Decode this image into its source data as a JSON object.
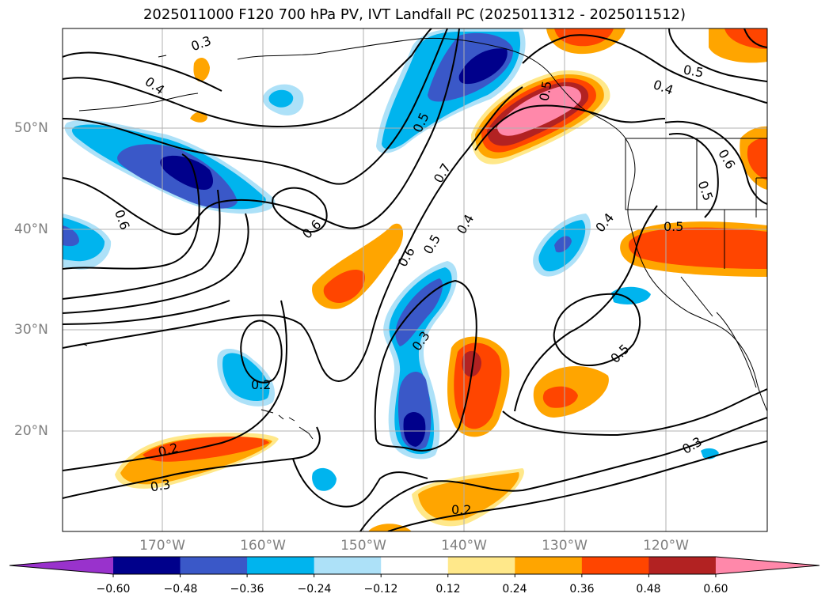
{
  "title": "2025011000 F120 700 hPa PV, IVT Landfall PC (2025011312 - 2025011512)",
  "axes": {
    "lat_labels": [
      "50°N",
      "40°N",
      "30°N",
      "20°N"
    ],
    "lon_labels": [
      "170°W",
      "160°W",
      "150°W",
      "140°W",
      "130°W",
      "120°W"
    ]
  },
  "colorbar": {
    "ticks": [
      "−0.60",
      "−0.48",
      "−0.36",
      "−0.24",
      "−0.12",
      "0.12",
      "0.24",
      "0.36",
      "0.48",
      "0.60"
    ],
    "colors": [
      "#9932CC",
      "#00008B",
      "#3A58C8",
      "#00B4EE",
      "#ADE1F8",
      "#FFFFFF",
      "#FFE88A",
      "#FFA500",
      "#FF4500",
      "#B22222",
      "#FF88AA"
    ]
  },
  "contour_labels": [
    "0.3",
    "0.4",
    "0.5",
    "0.6",
    "0.7",
    "0.4",
    "0.5",
    "0.6",
    "0.6",
    "0.5",
    "0.4",
    "0.5",
    "0.4",
    "0.5",
    "0.6",
    "0.5",
    "0.3",
    "0.2",
    "0.5",
    "0.2",
    "0.3",
    "0.3",
    "0.2"
  ]
}
